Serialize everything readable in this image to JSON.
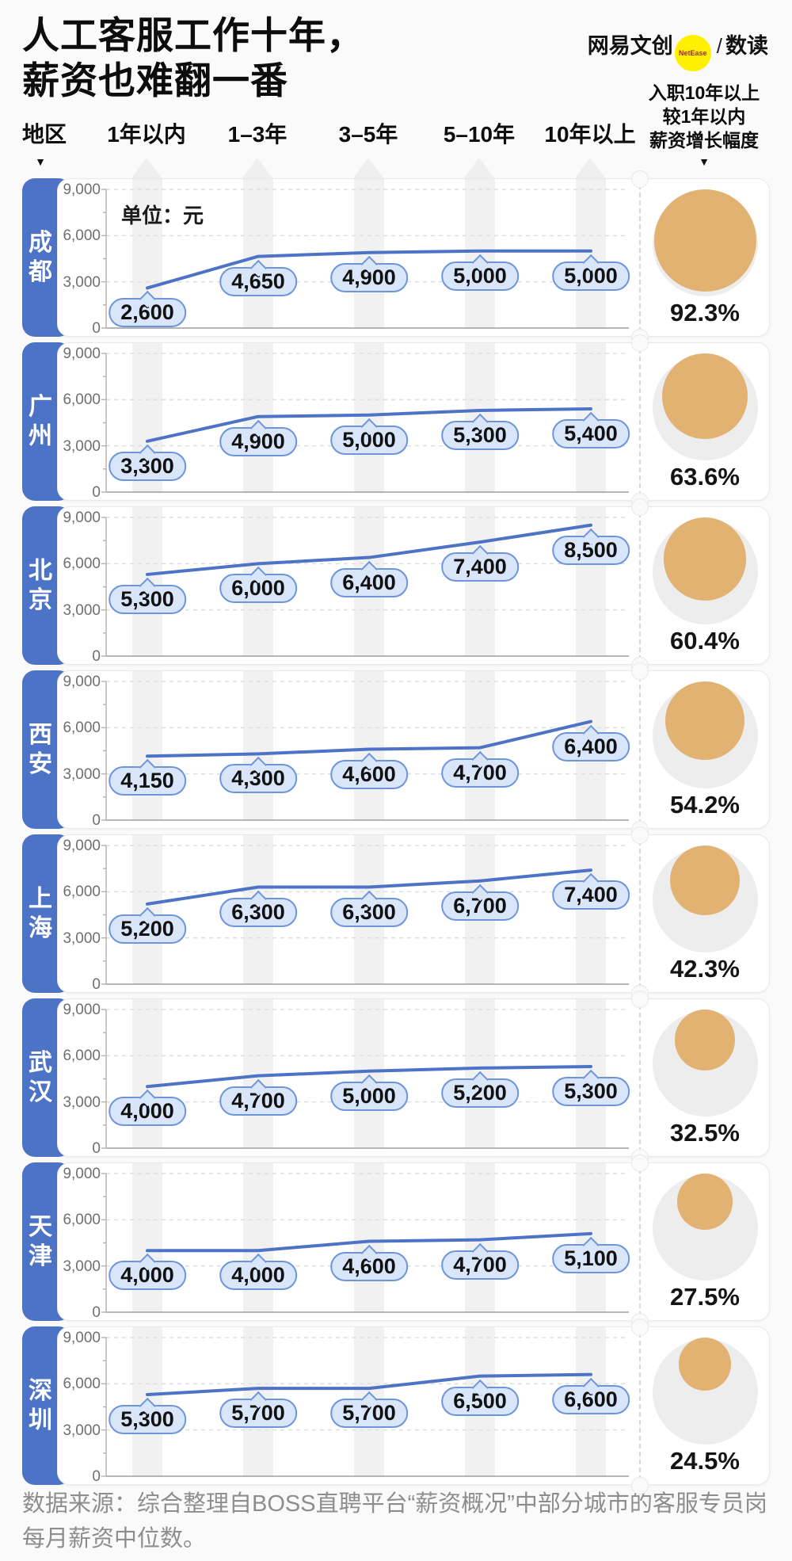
{
  "title": {
    "line1": "人工客服工作十年，",
    "line2": "薪资也难翻一番"
  },
  "logo": {
    "brand": "网易文创",
    "badge": "NetEase",
    "slash": "/",
    "sub": "数读"
  },
  "header": {
    "region_label": "地区",
    "growth_lines": [
      "入职10年以上",
      "较1年以内",
      "薪资增长幅度"
    ],
    "region_arrow": "▼",
    "growth_arrow": "▼"
  },
  "unit_label": "单位：元",
  "y_axis": {
    "tick_labels": [
      "9,000",
      "6,000",
      "3,000",
      "0"
    ],
    "tick_values": [
      9000,
      6000,
      3000,
      0
    ]
  },
  "chart_data": {
    "type": "line",
    "title": "人工客服工作十年，薪资也难翻一番",
    "unit": "元",
    "categories": [
      "1年以内",
      "1–3年",
      "3–5年",
      "5–10年",
      "10年以上"
    ],
    "ylim": [
      0,
      9000
    ],
    "yticks": [
      0,
      3000,
      6000,
      9000
    ],
    "grid": "dashed-horizontal",
    "series": [
      {
        "name": "成都",
        "values": [
          2600,
          4650,
          4900,
          5000,
          5000
        ],
        "labels": [
          "2,600",
          "4,650",
          "4,900",
          "5,000",
          "5,000"
        ],
        "growth_pct": 92.3,
        "growth_label": "92.3%"
      },
      {
        "name": "广州",
        "values": [
          3300,
          4900,
          5000,
          5300,
          5400
        ],
        "labels": [
          "3,300",
          "4,900",
          "5,000",
          "5,300",
          "5,400"
        ],
        "growth_pct": 63.6,
        "growth_label": "63.6%"
      },
      {
        "name": "北京",
        "values": [
          5300,
          6000,
          6400,
          7400,
          8500
        ],
        "labels": [
          "5,300",
          "6,000",
          "6,400",
          "7,400",
          "8,500"
        ],
        "growth_pct": 60.4,
        "growth_label": "60.4%"
      },
      {
        "name": "西安",
        "values": [
          4150,
          4300,
          4600,
          4700,
          6400
        ],
        "labels": [
          "4,150",
          "4,300",
          "4,600",
          "4,700",
          "6,400"
        ],
        "growth_pct": 54.2,
        "growth_label": "54.2%"
      },
      {
        "name": "上海",
        "values": [
          5200,
          6300,
          6300,
          6700,
          7400
        ],
        "labels": [
          "5,200",
          "6,300",
          "6,300",
          "6,700",
          "7,400"
        ],
        "growth_pct": 42.3,
        "growth_label": "42.3%"
      },
      {
        "name": "武汉",
        "values": [
          4000,
          4700,
          5000,
          5200,
          5300
        ],
        "labels": [
          "4,000",
          "4,700",
          "5,000",
          "5,200",
          "5,300"
        ],
        "growth_pct": 32.5,
        "growth_label": "32.5%"
      },
      {
        "name": "天津",
        "values": [
          4000,
          4000,
          4600,
          4700,
          5100
        ],
        "labels": [
          "4,000",
          "4,000",
          "4,600",
          "4,700",
          "5,100"
        ],
        "growth_pct": 27.5,
        "growth_label": "27.5%"
      },
      {
        "name": "深圳",
        "values": [
          5300,
          5700,
          5700,
          6500,
          6600
        ],
        "labels": [
          "5,300",
          "5,700",
          "5,700",
          "6,500",
          "6,600"
        ],
        "growth_pct": 24.5,
        "growth_label": "24.5%"
      }
    ]
  },
  "footer": {
    "source": "数据来源：综合整理自BOSS直聘平台“薪资概况”中部分城市的客服专员岗每月薪资中位数。"
  },
  "colors": {
    "accent_blue": "#4d73c6",
    "bubble_fill": "#d9e6f9",
    "bubble_border": "#6d95db",
    "band_gray": "#f1f1f2",
    "circle_tan": "#e2b273",
    "circle_gray": "#ededee",
    "badge_yellow": "#fff000"
  }
}
